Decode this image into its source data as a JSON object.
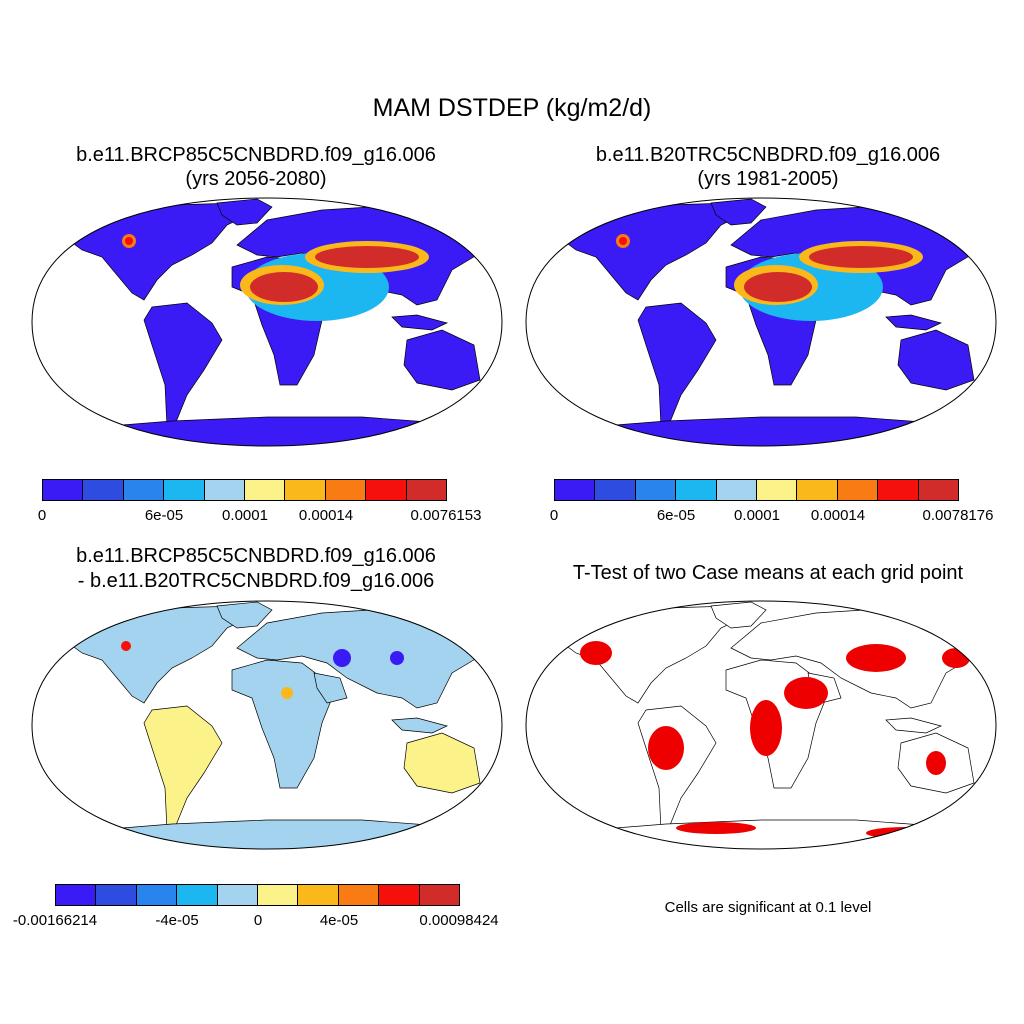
{
  "main_title": "MAM DSTDEP (kg/m2/d)",
  "panels": {
    "top_left": {
      "title_line1": "b.e11.BRCP85C5CNBDRD.f09_g16.006",
      "title_line2": "(yrs 2056-2080)"
    },
    "top_right": {
      "title_line1": "b.e11.B20TRC5CNBDRD.f09_g16.006",
      "title_line2": "(yrs 1981-2005)"
    },
    "bottom_left": {
      "title_line1": "b.e11.BRCP85C5CNBDRD.f09_g16.006",
      "title_line2": "- b.e11.B20TRC5CNBDRD.f09_g16.006"
    },
    "bottom_right": {
      "title_line1": "T-Test of two Case means at each grid point",
      "note": "Cells are significant at 0.1 level"
    }
  },
  "colors": {
    "case_palette": [
      "#3b1bf5",
      "#2e4de0",
      "#2a84ee",
      "#1cb6f0",
      "#a3d3ee",
      "#fbf28a",
      "#fbb81a",
      "#f87b14",
      "#f5100c",
      "#d12c2a"
    ],
    "significant": "#ee0000",
    "land_low": "#3b1bf5",
    "diff_land": "#a3d3ee",
    "diff_positive": "#fbf28a"
  },
  "colorbars": {
    "top_left": {
      "labels": [
        "0",
        "6e-05",
        "0.0001",
        "0.00014",
        "0.0076153"
      ]
    },
    "top_right": {
      "labels": [
        "0",
        "6e-05",
        "0.0001",
        "0.00014",
        "0.0078176"
      ]
    },
    "bottom_left": {
      "labels": [
        "-0.00166214",
        "-4e-05",
        "0",
        "4e-05",
        "0.00098424"
      ]
    }
  }
}
